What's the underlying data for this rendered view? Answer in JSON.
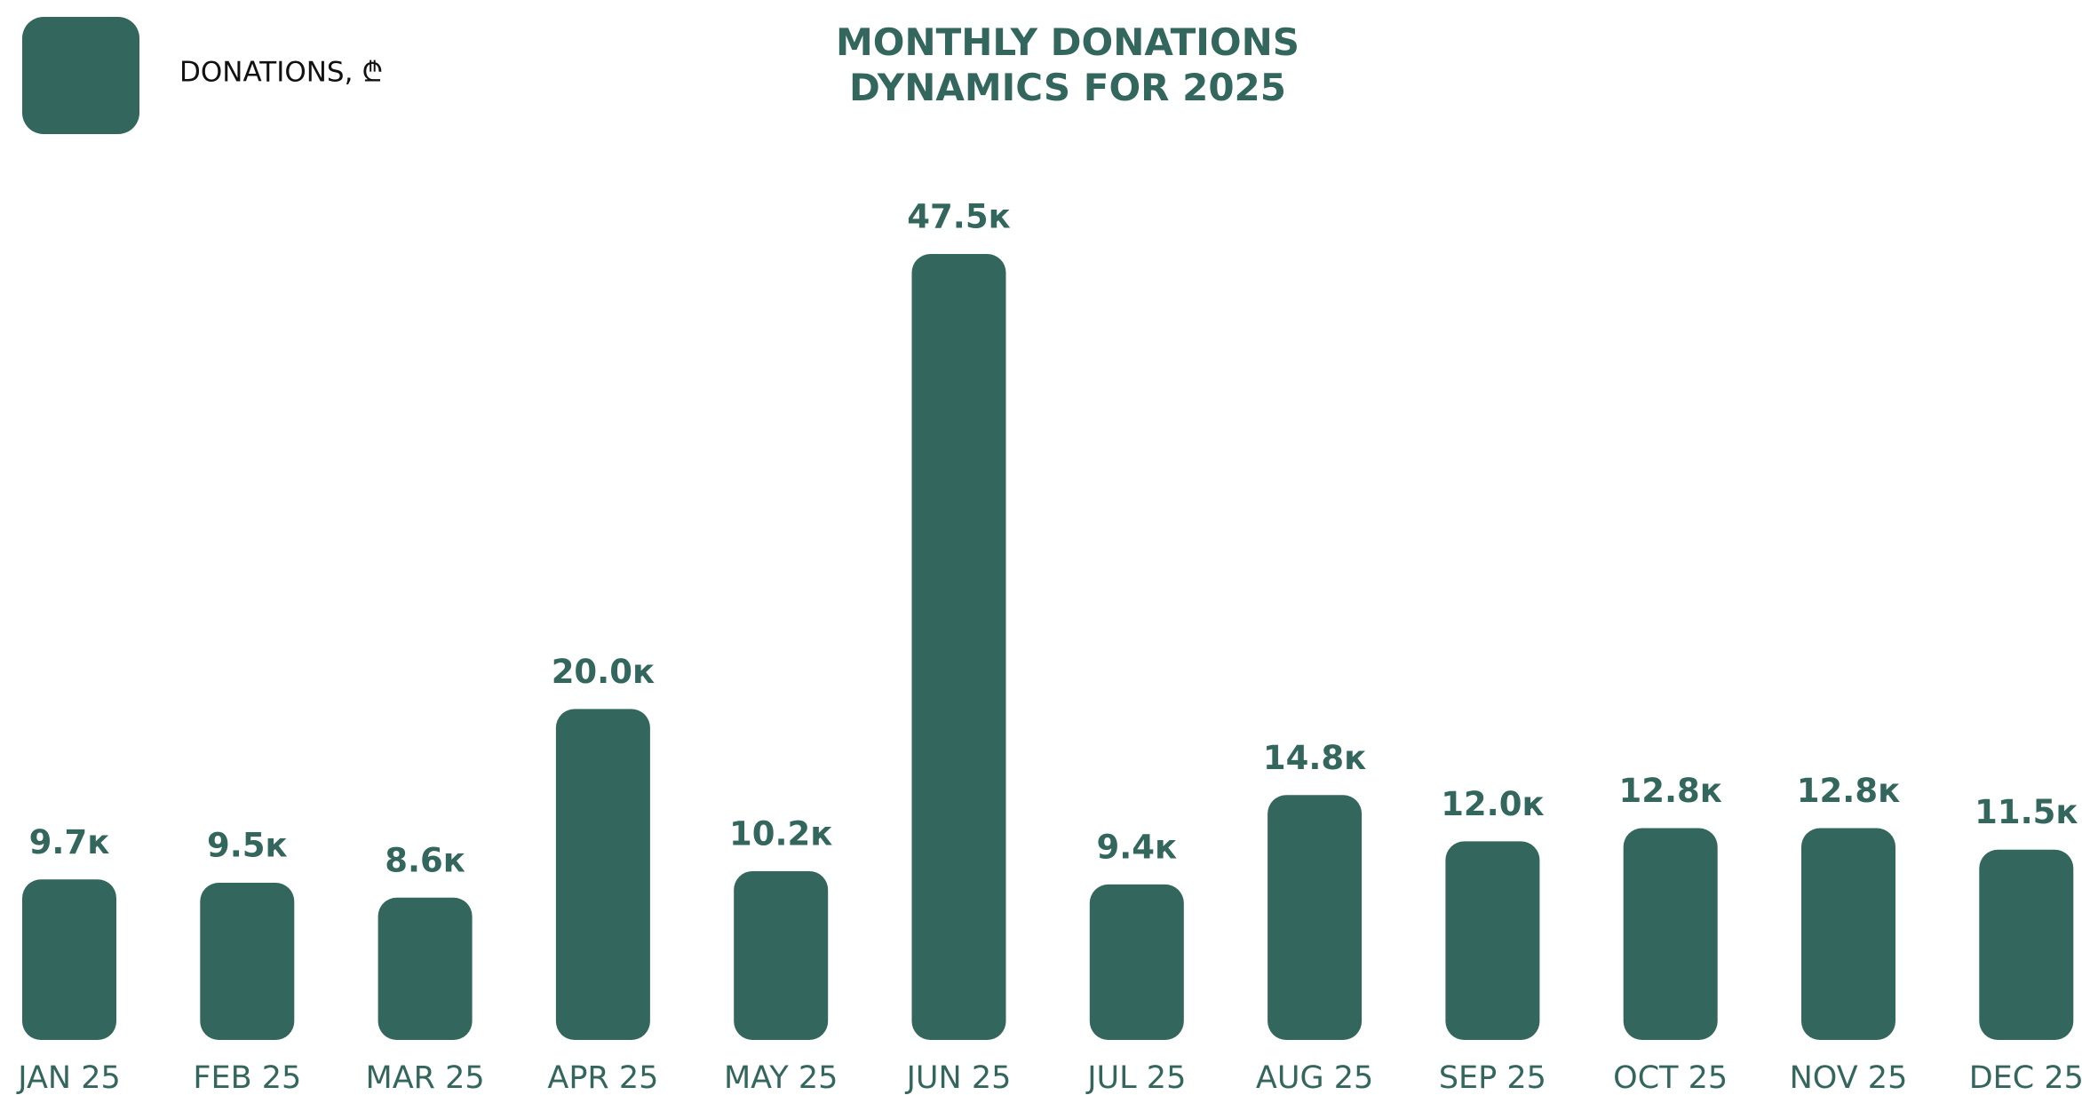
{
  "chart_data": {
    "type": "bar",
    "title": "MONTHLY DONATIONS DYNAMICS FOR 2025",
    "categories": [
      "JAN 25",
      "FEB 25",
      "MAR 25",
      "APR 25",
      "MAY 25",
      "JUN 25",
      "JUL 25",
      "AUG 25",
      "SEP 25",
      "OCT 25",
      "NOV 25",
      "DEC 25"
    ],
    "series": [
      {
        "name": "DONATIONS, ₾",
        "color": "#33665c",
        "values": [
          9700,
          9500,
          8600,
          20000,
          10200,
          47500,
          9400,
          14800,
          12000,
          12800,
          12800,
          11500
        ],
        "value_labels": [
          "9.7к",
          "9.5к",
          "8.6к",
          "20.0к",
          "10.2к",
          "47.5к",
          "9.4к",
          "14.8к",
          "12.0к",
          "12.8к",
          "12.8к",
          "11.5к"
        ]
      }
    ],
    "legend": "top-left"
  }
}
